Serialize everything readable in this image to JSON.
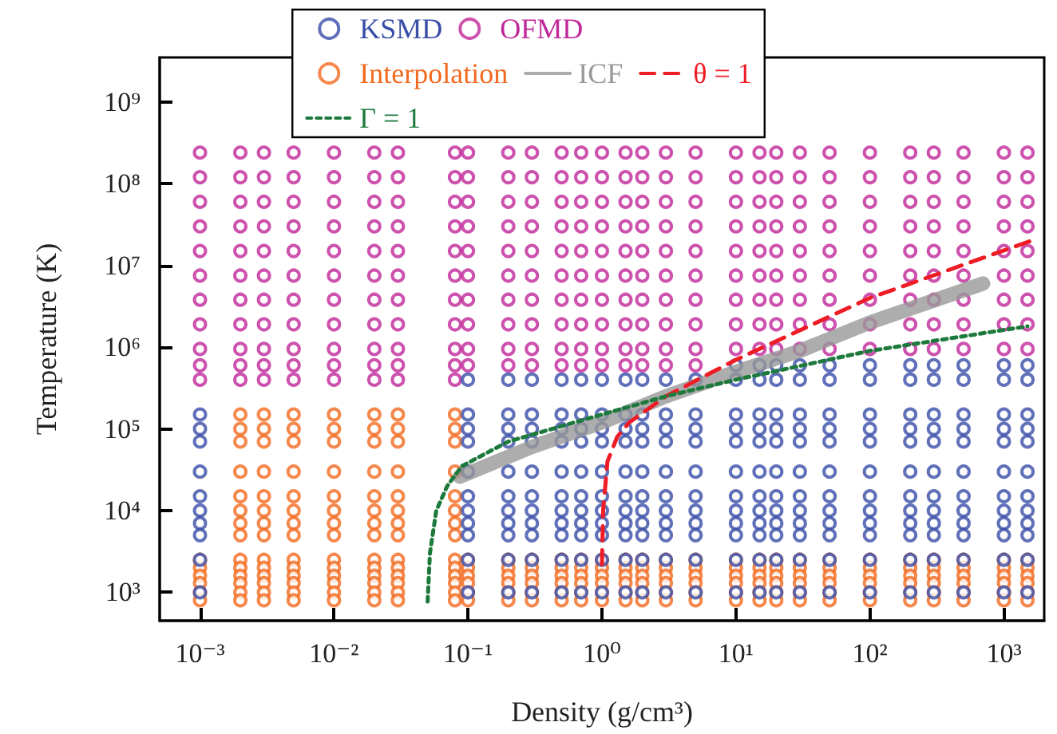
{
  "chart_data": {
    "type": "scatter",
    "xlabel": "Density (g/cm³)",
    "ylabel": "Temperature (K)",
    "log": "xy",
    "grid": false,
    "legend": "top",
    "marker": "circle",
    "xlim": [
      0.0005,
      2000
    ],
    "ylim": [
      450,
      3500000000
    ],
    "xticks": [
      {
        "value": 0.001,
        "label": "10⁻³"
      },
      {
        "value": 0.01,
        "label": "10⁻²"
      },
      {
        "value": 0.1,
        "label": "10⁻¹"
      },
      {
        "value": 1,
        "label": "10⁰"
      },
      {
        "value": 10,
        "label": "10¹"
      },
      {
        "value": 100,
        "label": "10²"
      },
      {
        "value": 1000,
        "label": "10³"
      }
    ],
    "yticks": [
      {
        "value": 1000,
        "label": "10³"
      },
      {
        "value": 10000,
        "label": "10⁴"
      },
      {
        "value": 100000,
        "label": "10⁵"
      },
      {
        "value": 1000000,
        "label": "10⁶"
      },
      {
        "value": 10000000,
        "label": "10⁷"
      },
      {
        "value": 100000000,
        "label": "10⁸"
      },
      {
        "value": 1000000000,
        "label": "10⁹"
      }
    ],
    "series": [
      {
        "name": "KSMD",
        "color": "#3a4ea8",
        "x": [
          10,
          15,
          20,
          30,
          50,
          100,
          200,
          300,
          500,
          1000,
          1500,
          0.1,
          0.2,
          0.3,
          0.5,
          0.7,
          1,
          1.5,
          2,
          3,
          5,
          10,
          15,
          20,
          30,
          50,
          100,
          200,
          300,
          500,
          1000,
          1500,
          0.001,
          0.1,
          0.2,
          0.3,
          0.5,
          0.7,
          1,
          1.5,
          2,
          3,
          5,
          10,
          15,
          20,
          30,
          50,
          100,
          200,
          300,
          500,
          1000,
          1500,
          0.001,
          0.1,
          0.2,
          0.3,
          0.5,
          0.7,
          1,
          1.5,
          2,
          3,
          5,
          10,
          15,
          20,
          30,
          50,
          100,
          200,
          300,
          500,
          1000,
          1500,
          0.001,
          0.1,
          0.2,
          0.3,
          0.5,
          0.7,
          1,
          1.5,
          2,
          3,
          5,
          10,
          15,
          20,
          30,
          50,
          100,
          200,
          300,
          500,
          1000,
          1500,
          0.001,
          0.1,
          0.2,
          0.3,
          0.5,
          0.7,
          1,
          1.5,
          2,
          3,
          5,
          10,
          15,
          20,
          30,
          50,
          100,
          200,
          300,
          500,
          1000,
          1500,
          0.001,
          0.1,
          0.2,
          0.3,
          0.5,
          0.7,
          1,
          1.5,
          2,
          3,
          5,
          10,
          15,
          20,
          30,
          50,
          100,
          200,
          300,
          500,
          1000,
          1500,
          0.001,
          0.1,
          0.2,
          0.3,
          0.5,
          0.7,
          1,
          1.5,
          2,
          3,
          5,
          10,
          15,
          20,
          30,
          50,
          100,
          200,
          300,
          500,
          1000,
          1500,
          0.001,
          0.1,
          0.2,
          0.3,
          0.5,
          0.7,
          1,
          1.5,
          2,
          3,
          5,
          10,
          15,
          20,
          30,
          50,
          100,
          200,
          300,
          500,
          1000,
          1500,
          0.001,
          0.1,
          0.2,
          0.3,
          0.5,
          0.7,
          1,
          1.5,
          2,
          3,
          5,
          10,
          15,
          20,
          30,
          50,
          100,
          200,
          300,
          500,
          1000,
          1500,
          0.001,
          0.1,
          0.2,
          0.3,
          0.5,
          0.7,
          1,
          1.5,
          2,
          3,
          5,
          10,
          15,
          20,
          30,
          50,
          100,
          200,
          300,
          500,
          1000,
          1500,
          0.001,
          0.1,
          0.2,
          0.3,
          0.5,
          0.7,
          1,
          1.5,
          2,
          3,
          5,
          10,
          15,
          20,
          30,
          50,
          100,
          200,
          300,
          500,
          1000,
          1500
        ],
        "values": [
          600000,
          600000,
          600000,
          600000,
          600000,
          600000,
          600000,
          600000,
          600000,
          600000,
          600000,
          400000,
          400000,
          400000,
          400000,
          400000,
          400000,
          400000,
          400000,
          400000,
          400000,
          400000,
          400000,
          400000,
          400000,
          400000,
          400000,
          400000,
          400000,
          400000,
          400000,
          400000,
          150000,
          150000,
          150000,
          150000,
          150000,
          150000,
          150000,
          150000,
          150000,
          150000,
          150000,
          150000,
          150000,
          150000,
          150000,
          150000,
          150000,
          150000,
          150000,
          150000,
          150000,
          150000,
          100000,
          100000,
          100000,
          100000,
          100000,
          100000,
          100000,
          100000,
          100000,
          100000,
          100000,
          100000,
          100000,
          100000,
          100000,
          100000,
          100000,
          100000,
          100000,
          100000,
          100000,
          100000,
          70000,
          70000,
          70000,
          70000,
          70000,
          70000,
          70000,
          70000,
          70000,
          70000,
          70000,
          70000,
          70000,
          70000,
          70000,
          70000,
          70000,
          70000,
          70000,
          70000,
          70000,
          70000,
          30000,
          30000,
          30000,
          30000,
          30000,
          30000,
          30000,
          30000,
          30000,
          30000,
          30000,
          30000,
          30000,
          30000,
          30000,
          30000,
          30000,
          30000,
          30000,
          30000,
          30000,
          30000,
          15000,
          15000,
          15000,
          15000,
          15000,
          15000,
          15000,
          15000,
          15000,
          15000,
          15000,
          15000,
          15000,
          15000,
          15000,
          15000,
          15000,
          15000,
          15000,
          15000,
          15000,
          15000,
          10000,
          10000,
          10000,
          10000,
          10000,
          10000,
          10000,
          10000,
          10000,
          10000,
          10000,
          10000,
          10000,
          10000,
          10000,
          10000,
          10000,
          10000,
          10000,
          10000,
          10000,
          10000,
          7000,
          7000,
          7000,
          7000,
          7000,
          7000,
          7000,
          7000,
          7000,
          7000,
          7000,
          7000,
          7000,
          7000,
          7000,
          7000,
          7000,
          7000,
          7000,
          7000,
          7000,
          7000,
          5000,
          5000,
          5000,
          5000,
          5000,
          5000,
          5000,
          5000,
          5000,
          5000,
          5000,
          5000,
          5000,
          5000,
          5000,
          5000,
          5000,
          5000,
          5000,
          5000,
          5000,
          5000,
          2500,
          2500,
          2500,
          2500,
          2500,
          2500,
          2500,
          2500,
          2500,
          2500,
          2500,
          2500,
          2500,
          2500,
          2500,
          2500,
          2500,
          2500,
          2500,
          2500,
          2500,
          2500,
          1000,
          1000,
          1000,
          1000,
          1000,
          1000,
          1000,
          1000,
          1000,
          1000,
          1000,
          1000,
          1000,
          1000,
          1000,
          1000,
          1000,
          1000,
          1000,
          1000,
          1000,
          1000
        ]
      },
      {
        "name": "OFMD",
        "color": "#c0279a",
        "x": [
          0.001,
          0.002,
          0.003,
          0.005,
          0.01,
          0.02,
          0.03,
          0.08,
          0.1,
          0.2,
          0.3,
          0.5,
          0.7,
          1,
          1.5,
          2,
          3,
          5,
          10,
          15,
          20,
          30,
          50,
          100,
          200,
          300,
          500,
          1000,
          1500,
          0.001,
          0.002,
          0.003,
          0.005,
          0.01,
          0.02,
          0.03,
          0.08,
          0.1,
          0.2,
          0.3,
          0.5,
          0.7,
          1,
          1.5,
          2,
          3,
          5,
          10,
          15,
          20,
          30,
          50,
          100,
          200,
          300,
          500,
          1000,
          1500,
          0.001,
          0.002,
          0.003,
          0.005,
          0.01,
          0.02,
          0.03,
          0.08,
          0.1,
          0.2,
          0.3,
          0.5,
          0.7,
          1,
          1.5,
          2,
          3,
          5,
          10,
          15,
          20,
          30,
          50,
          100,
          200,
          300,
          500,
          1000,
          1500,
          0.001,
          0.002,
          0.003,
          0.005,
          0.01,
          0.02,
          0.03,
          0.08,
          0.1,
          0.2,
          0.3,
          0.5,
          0.7,
          1,
          1.5,
          2,
          3,
          5,
          10,
          15,
          20,
          30,
          50,
          100,
          200,
          300,
          500,
          1000,
          1500,
          0.001,
          0.002,
          0.003,
          0.005,
          0.01,
          0.02,
          0.03,
          0.08,
          0.1,
          0.2,
          0.3,
          0.5,
          0.7,
          1,
          1.5,
          2,
          3,
          5,
          10,
          15,
          20,
          30,
          50,
          100,
          200,
          300,
          500,
          1000,
          1500,
          0.001,
          0.002,
          0.003,
          0.005,
          0.01,
          0.02,
          0.03,
          0.08,
          0.1,
          0.2,
          0.3,
          0.5,
          0.7,
          1,
          1.5,
          2,
          3,
          5,
          10,
          15,
          20,
          30,
          50,
          100,
          200,
          300,
          500,
          1000,
          1500,
          0.001,
          0.002,
          0.003,
          0.005,
          0.01,
          0.02,
          0.03,
          0.08,
          0.1,
          0.2,
          0.3,
          0.5,
          0.7,
          1,
          1.5,
          2,
          3,
          5,
          10,
          15,
          20,
          30,
          50,
          100,
          200,
          300,
          500,
          1000,
          1500,
          0.001,
          0.002,
          0.003,
          0.005,
          0.01,
          0.02,
          0.03,
          0.08,
          0.1,
          0.2,
          0.3,
          0.5,
          0.7,
          1,
          1.5,
          2,
          3,
          5,
          10,
          15,
          20,
          30,
          50,
          100,
          200,
          300,
          500,
          1000,
          1500,
          0.001,
          0.002,
          0.003,
          0.005,
          0.01,
          0.02,
          0.03,
          0.08,
          0.1,
          0.2,
          0.3,
          0.5,
          0.7,
          1,
          1.5,
          2,
          3,
          5,
          10,
          15,
          20,
          30,
          50,
          100,
          200,
          300,
          500,
          1000,
          1500,
          0.001,
          0.002,
          0.003,
          0.005,
          0.01,
          0.02,
          0.03,
          0.08,
          0.1,
          0.2,
          0.3,
          0.5,
          0.7,
          1,
          1.5,
          2,
          3,
          5,
          0.001,
          0.002,
          0.003,
          0.005,
          0.01,
          0.02,
          0.03,
          0.08
        ],
        "values": [
          950000,
          950000,
          950000,
          950000,
          950000,
          950000,
          950000,
          950000,
          950000,
          950000,
          950000,
          950000,
          950000,
          950000,
          950000,
          950000,
          950000,
          950000,
          950000,
          950000,
          950000,
          950000,
          950000,
          950000,
          950000,
          950000,
          950000,
          950000,
          950000,
          1900000,
          1900000,
          1900000,
          1900000,
          1900000,
          1900000,
          1900000,
          1900000,
          1900000,
          1900000,
          1900000,
          1900000,
          1900000,
          1900000,
          1900000,
          1900000,
          1900000,
          1900000,
          1900000,
          1900000,
          1900000,
          1900000,
          1900000,
          1900000,
          1900000,
          1900000,
          1900000,
          1900000,
          1900000,
          3800000,
          3800000,
          3800000,
          3800000,
          3800000,
          3800000,
          3800000,
          3800000,
          3800000,
          3800000,
          3800000,
          3800000,
          3800000,
          3800000,
          3800000,
          3800000,
          3800000,
          3800000,
          3800000,
          3800000,
          3800000,
          3800000,
          3800000,
          3800000,
          3800000,
          3800000,
          3800000,
          3800000,
          3800000,
          7500000,
          7500000,
          7500000,
          7500000,
          7500000,
          7500000,
          7500000,
          7500000,
          7500000,
          7500000,
          7500000,
          7500000,
          7500000,
          7500000,
          7500000,
          7500000,
          7500000,
          7500000,
          7500000,
          7500000,
          7500000,
          7500000,
          7500000,
          7500000,
          7500000,
          7500000,
          7500000,
          7500000,
          7500000,
          15000000,
          15000000,
          15000000,
          15000000,
          15000000,
          15000000,
          15000000,
          15000000,
          15000000,
          15000000,
          15000000,
          15000000,
          15000000,
          15000000,
          15000000,
          15000000,
          15000000,
          15000000,
          15000000,
          15000000,
          15000000,
          15000000,
          15000000,
          15000000,
          15000000,
          15000000,
          15000000,
          15000000,
          15000000,
          30000000,
          30000000,
          30000000,
          30000000,
          30000000,
          30000000,
          30000000,
          30000000,
          30000000,
          30000000,
          30000000,
          30000000,
          30000000,
          30000000,
          30000000,
          30000000,
          30000000,
          30000000,
          30000000,
          30000000,
          30000000,
          30000000,
          30000000,
          30000000,
          30000000,
          30000000,
          30000000,
          30000000,
          30000000,
          60000000,
          60000000,
          60000000,
          60000000,
          60000000,
          60000000,
          60000000,
          60000000,
          60000000,
          60000000,
          60000000,
          60000000,
          60000000,
          60000000,
          60000000,
          60000000,
          60000000,
          60000000,
          60000000,
          60000000,
          60000000,
          60000000,
          60000000,
          60000000,
          60000000,
          60000000,
          60000000,
          60000000,
          60000000,
          120000000,
          120000000,
          120000000,
          120000000,
          120000000,
          120000000,
          120000000,
          120000000,
          120000000,
          120000000,
          120000000,
          120000000,
          120000000,
          120000000,
          120000000,
          120000000,
          120000000,
          120000000,
          120000000,
          120000000,
          120000000,
          120000000,
          120000000,
          120000000,
          120000000,
          120000000,
          120000000,
          120000000,
          120000000,
          240000000,
          240000000,
          240000000,
          240000000,
          240000000,
          240000000,
          240000000,
          240000000,
          240000000,
          240000000,
          240000000,
          240000000,
          240000000,
          240000000,
          240000000,
          240000000,
          240000000,
          240000000,
          240000000,
          240000000,
          240000000,
          240000000,
          240000000,
          240000000,
          240000000,
          240000000,
          240000000,
          240000000,
          240000000,
          600000,
          600000,
          600000,
          600000,
          600000,
          600000,
          600000,
          600000,
          600000,
          600000,
          600000,
          600000,
          600000,
          600000,
          600000,
          600000,
          600000,
          600000,
          400000,
          400000,
          400000,
          400000,
          400000,
          400000,
          400000,
          400000
        ]
      },
      {
        "name": "Interpolation",
        "color": "#f26a1f",
        "x": [
          0.002,
          0.003,
          0.005,
          0.01,
          0.02,
          0.03,
          0.08,
          0.002,
          0.003,
          0.005,
          0.01,
          0.02,
          0.03,
          0.08,
          0.002,
          0.003,
          0.005,
          0.01,
          0.02,
          0.03,
          0.08,
          0.002,
          0.003,
          0.005,
          0.01,
          0.02,
          0.03,
          0.08,
          0.002,
          0.003,
          0.005,
          0.01,
          0.02,
          0.03,
          0.08,
          0.002,
          0.003,
          0.005,
          0.01,
          0.02,
          0.03,
          0.08,
          0.002,
          0.003,
          0.005,
          0.01,
          0.02,
          0.03,
          0.08,
          0.002,
          0.003,
          0.005,
          0.01,
          0.02,
          0.03,
          0.08,
          0.001,
          0.002,
          0.003,
          0.005,
          0.01,
          0.02,
          0.03,
          0.08,
          0.1,
          0.2,
          0.3,
          0.5,
          0.7,
          1,
          1.5,
          2,
          3,
          5,
          10,
          15,
          20,
          30,
          50,
          100,
          200,
          300,
          500,
          1000,
          1500,
          0.001,
          0.002,
          0.003,
          0.005,
          0.01,
          0.02,
          0.03,
          0.08,
          0.1,
          0.2,
          0.3,
          0.5,
          0.7,
          1,
          1.5,
          2,
          3,
          5,
          10,
          15,
          20,
          30,
          50,
          100,
          200,
          300,
          500,
          1000,
          1500,
          0.001,
          0.002,
          0.003,
          0.005,
          0.01,
          0.02,
          0.03,
          0.08,
          0.1,
          0.2,
          0.3,
          0.5,
          0.7,
          1,
          1.5,
          2,
          3,
          5,
          10,
          15,
          20,
          30,
          50,
          100,
          200,
          300,
          500,
          1000,
          1500,
          0.001,
          0.002,
          0.003,
          0.005,
          0.01,
          0.02,
          0.03,
          0.08,
          0.1,
          0.2,
          0.3,
          0.5,
          0.7,
          1,
          1.5,
          2,
          3,
          5,
          10,
          15,
          20,
          30,
          50,
          100,
          200,
          300,
          500,
          1000,
          1500,
          0.001,
          0.002,
          0.003,
          0.005,
          0.01,
          0.02,
          0.03,
          0.08,
          0.1,
          0.2,
          0.3,
          0.5,
          0.7,
          1,
          1.5,
          2,
          3,
          5,
          10,
          15,
          20,
          30,
          50,
          100,
          200,
          300,
          500,
          1000,
          1500,
          0.001,
          0.002,
          0.003,
          0.005,
          0.01,
          0.02,
          0.03,
          0.08,
          0.1,
          0.2,
          0.3,
          0.5,
          0.7,
          1,
          1.5,
          2,
          3,
          5,
          10,
          15,
          20,
          30,
          50,
          100,
          200,
          300,
          500,
          1000,
          1500
        ],
        "values": [
          150000,
          150000,
          150000,
          150000,
          150000,
          150000,
          150000,
          100000,
          100000,
          100000,
          100000,
          100000,
          100000,
          100000,
          70000,
          70000,
          70000,
          70000,
          70000,
          70000,
          70000,
          30000,
          30000,
          30000,
          30000,
          30000,
          30000,
          30000,
          15000,
          15000,
          15000,
          15000,
          15000,
          15000,
          15000,
          10000,
          10000,
          10000,
          10000,
          10000,
          10000,
          10000,
          7000,
          7000,
          7000,
          7000,
          7000,
          7000,
          7000,
          5000,
          5000,
          5000,
          5000,
          5000,
          5000,
          5000,
          2500,
          2500,
          2500,
          2500,
          2500,
          2500,
          2500,
          2500,
          2500,
          2500,
          2500,
          2500,
          2500,
          2500,
          2500,
          2500,
          2500,
          2500,
          2500,
          2500,
          2500,
          2500,
          2500,
          2500,
          2500,
          2500,
          2500,
          2500,
          2500,
          2000,
          2000,
          2000,
          2000,
          2000,
          2000,
          2000,
          2000,
          2000,
          2000,
          2000,
          2000,
          2000,
          2000,
          2000,
          2000,
          2000,
          2000,
          2000,
          2000,
          2000,
          2000,
          2000,
          2000,
          2000,
          2000,
          2000,
          2000,
          2000,
          1600,
          1600,
          1600,
          1600,
          1600,
          1600,
          1600,
          1600,
          1600,
          1600,
          1600,
          1600,
          1600,
          1600,
          1600,
          1600,
          1600,
          1600,
          1600,
          1600,
          1600,
          1600,
          1600,
          1600,
          1600,
          1600,
          1600,
          1600,
          1600,
          1300,
          1300,
          1300,
          1300,
          1300,
          1300,
          1300,
          1300,
          1300,
          1300,
          1300,
          1300,
          1300,
          1300,
          1300,
          1300,
          1300,
          1300,
          1300,
          1300,
          1300,
          1300,
          1300,
          1300,
          1300,
          1300,
          1300,
          1300,
          1300,
          1000,
          1000,
          1000,
          1000,
          1000,
          1000,
          1000,
          1000,
          1000,
          1000,
          1000,
          1000,
          1000,
          1000,
          1000,
          1000,
          1000,
          1000,
          1000,
          1000,
          1000,
          1000,
          1000,
          1000,
          1000,
          1000,
          1000,
          1000,
          1000,
          800,
          800,
          800,
          800,
          800,
          800,
          800,
          800,
          800,
          800,
          800,
          800,
          800,
          800,
          800,
          800,
          800,
          800,
          800,
          800,
          800,
          800,
          800,
          800,
          800,
          800,
          800,
          800,
          800
        ]
      },
      {
        "name": "ICF",
        "type": "line",
        "color": "#999999",
        "line_style": "solid",
        "marker": "none",
        "x": [
          0.087,
          0.3,
          1,
          3,
          10,
          30,
          100,
          700
        ],
        "values": [
          26000,
          60000,
          120000,
          250000,
          500000,
          900000,
          2000000,
          6000000
        ]
      },
      {
        "name": "θ = 1",
        "type": "line",
        "color": "#ee1c25",
        "line_style": "dashed",
        "marker": "none",
        "x": [
          1,
          1.02,
          1.1,
          1.3,
          1.6,
          3,
          10,
          100,
          1600
        ],
        "values": [
          2200,
          10000,
          40000,
          80000,
          120000,
          250000,
          700000,
          4000000,
          20000000
        ]
      },
      {
        "name": "Γ = 1",
        "type": "line",
        "color": "#1e7a3c",
        "line_style": "dotted",
        "marker": "none",
        "x": [
          0.05,
          0.052,
          0.058,
          0.07,
          0.09,
          0.2,
          1,
          3,
          10,
          100,
          1500
        ],
        "values": [
          770,
          3000,
          10000,
          20000,
          35000,
          70000,
          150000,
          250000,
          400000,
          900000,
          1800000
        ]
      }
    ]
  }
}
